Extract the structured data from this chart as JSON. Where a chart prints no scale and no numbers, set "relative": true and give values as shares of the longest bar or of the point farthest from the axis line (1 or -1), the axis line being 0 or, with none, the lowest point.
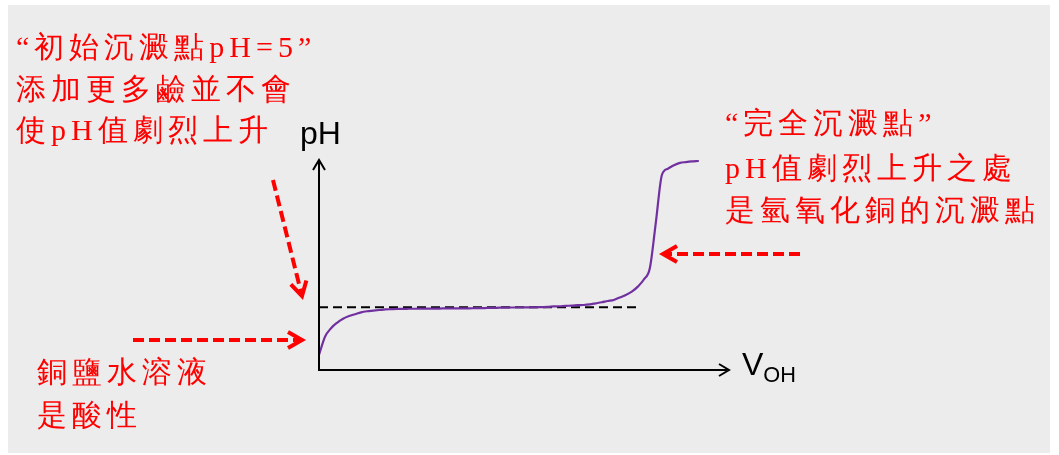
{
  "chart_data": {
    "type": "line",
    "xlabel": "V$_{OH}$",
    "ylabel": "pH",
    "annotations": [
      "“初始沉澱點pH=5”",
      "添加更多鹼並不會使pH值劇烈上升",
      "“完全沉澱點”",
      "pH值劇烈上升之處是氫氧化銅的沉澱點",
      "銅鹽水溶液是酸性"
    ],
    "categories": [
      null,
      null,
      null,
      null,
      null,
      null,
      null,
      null,
      null,
      null,
      null,
      null,
      null,
      null,
      null,
      null,
      null,
      null,
      null,
      null,
      null,
      null,
      null,
      null,
      null,
      null,
      null,
      null,
      null,
      null,
      null,
      null,
      null,
      null,
      null,
      null,
      null,
      null,
      null,
      null,
      null,
      null,
      null,
      null,
      null,
      null,
      null,
      null,
      null,
      null,
      null,
      null,
      null,
      null,
      null,
      null,
      null,
      null,
      null,
      null,
      null,
      null,
      null,
      null
    ],
    "series": [
      {
        "color": "#7030a0",
        "values": [
          0.072,
          0.159,
          0.2,
          0.226,
          0.245,
          0.258,
          0.267,
          0.276,
          0.281,
          0.284,
          0.287,
          0.29,
          0.291,
          0.292,
          0.292,
          0.293,
          0.293,
          0.294,
          0.294,
          0.294,
          0.294,
          0.295,
          0.295,
          0.295,
          0.295,
          0.295,
          0.296,
          0.296,
          0.297,
          0.297,
          0.298,
          0.298,
          0.299,
          0.299,
          0.3,
          0.3,
          0.3,
          0.301,
          0.302,
          0.304,
          0.305,
          0.307,
          0.308,
          0.31,
          0.311,
          0.314,
          0.319,
          0.324,
          0.33,
          0.335,
          0.347,
          0.359,
          0.375,
          0.399,
          0.433,
          0.488,
          0.708,
          0.933,
          0.963,
          0.98,
          0.991,
          0.995,
          0.998,
          1
        ]
      }
    ],
    "relative": true,
    "ref_lines": [
      {
        "axis": "y",
        "value": 0.3,
        "color": "#000000",
        "line_style": "dashed"
      }
    ],
    "marker": "none",
    "line_style": "solid"
  }
}
